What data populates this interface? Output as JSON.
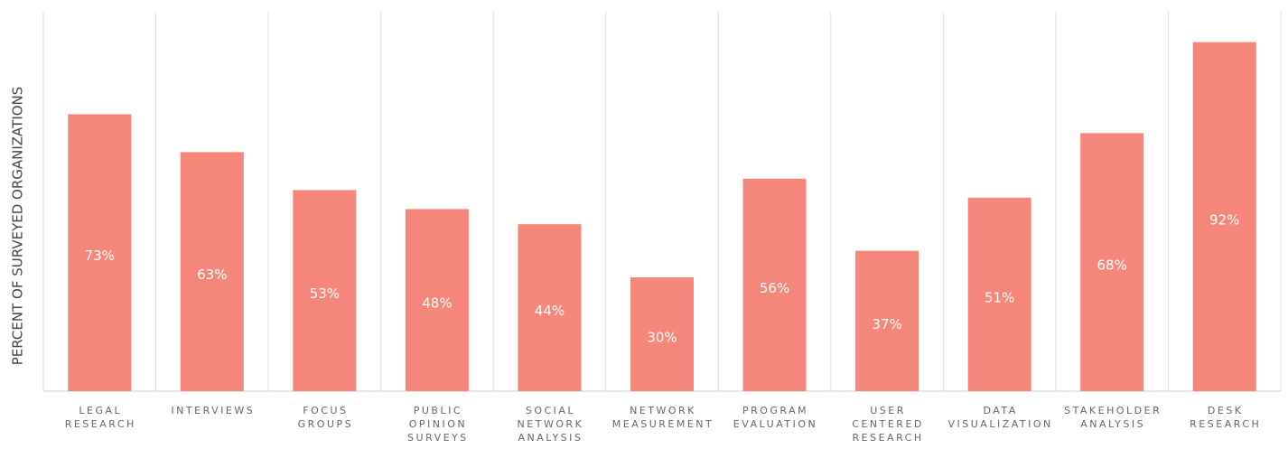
{
  "chart_data": {
    "type": "bar",
    "y_label": "PERCENT OF SURVEYED ORGANIZATIONS",
    "categories": [
      "LEGAL RESEARCH",
      "INTERVIEWS",
      "FOCUS GROUPS",
      "PUBLIC OPINION SURVEYS",
      "SOCIAL NETWORK ANALYSIS",
      "NETWORK MEASUREMENT",
      "PROGRAM EVALUATION",
      "USER CENTERED RESEARCH",
      "DATA VISUALIZATION",
      "STAKEHOLDER ANALYSIS",
      "DESK RESEARCH"
    ],
    "values": [
      73,
      63,
      53,
      48,
      44,
      30,
      56,
      37,
      51,
      68,
      92
    ],
    "value_labels": [
      "73%",
      "63%",
      "53%",
      "48%",
      "44%",
      "30%",
      "56%",
      "37%",
      "51%",
      "68%",
      "92%"
    ],
    "color": "#f4877a",
    "ylim": [
      0,
      100
    ],
    "grid": true
  }
}
